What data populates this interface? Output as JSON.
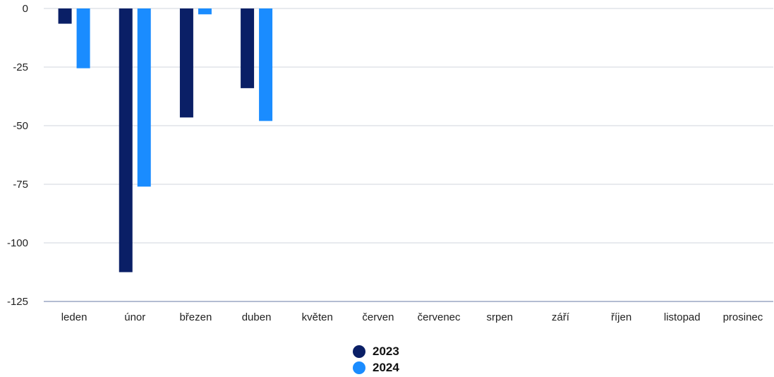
{
  "chart_data": {
    "type": "bar",
    "title": "",
    "xlabel": "",
    "ylabel": "",
    "categories": [
      "leden",
      "únor",
      "březen",
      "duben",
      "květen",
      "červen",
      "červenec",
      "srpen",
      "září",
      "říjen",
      "listopad",
      "prosinec"
    ],
    "series": [
      {
        "name": "2023",
        "color": "#0a1f66",
        "values": [
          -6.5,
          -112.5,
          -46.5,
          -34,
          null,
          null,
          null,
          null,
          null,
          null,
          null,
          null
        ]
      },
      {
        "name": "2024",
        "color": "#1a8cff",
        "values": [
          -25.5,
          -76,
          -2.5,
          -48,
          null,
          null,
          null,
          null,
          null,
          null,
          null,
          null
        ]
      }
    ],
    "ylim": [
      -125,
      0
    ],
    "yticks": [
      0,
      -25,
      -50,
      -75,
      -100,
      -125
    ],
    "grid": true,
    "legend_position": "bottom-center"
  }
}
